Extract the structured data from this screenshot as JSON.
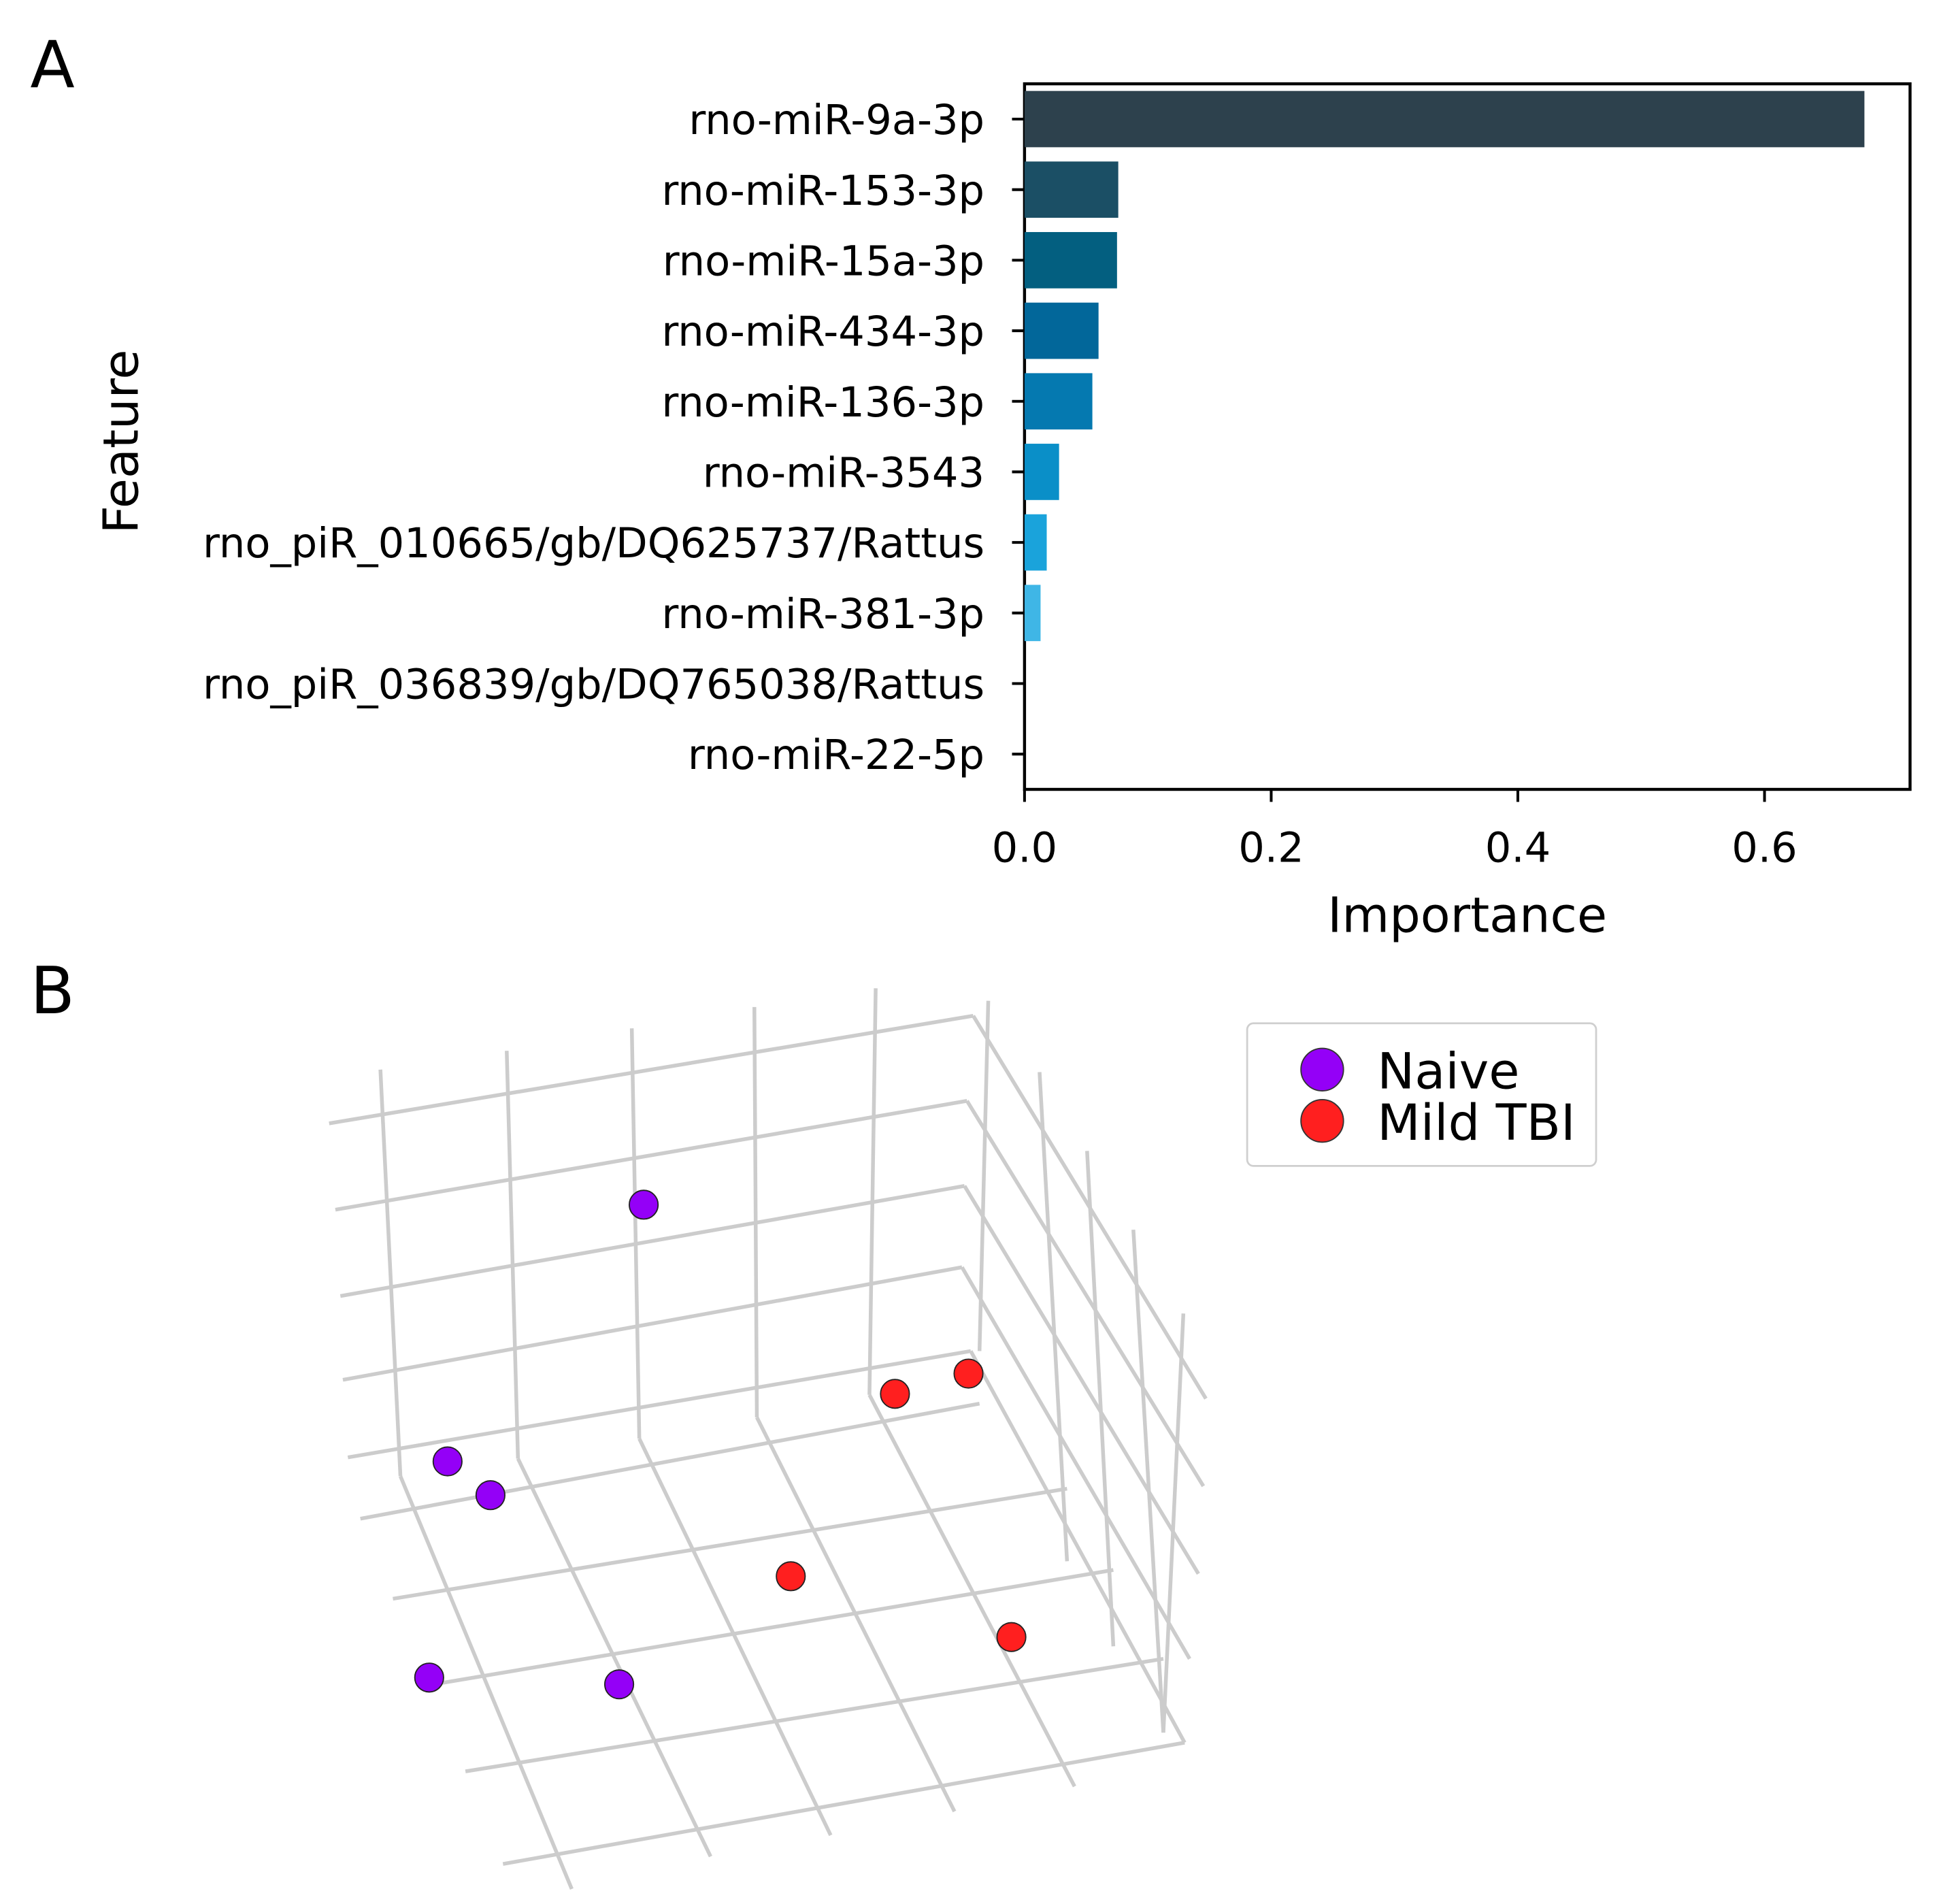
{
  "chart_data": [
    {
      "panel_label": "A",
      "type": "bar",
      "orientation": "horizontal",
      "xlabel": "Importance",
      "ylabel": "Feature",
      "xlim": [
        0,
        0.718
      ],
      "xticks": [
        "0.0",
        "0.2",
        "0.4",
        "0.6"
      ],
      "xtick_values": [
        0.0,
        0.2,
        0.4,
        0.6
      ],
      "categories": [
        "rno-miR-9a-3p",
        "rno-miR-153-3p",
        "rno-miR-15a-3p",
        "rno-miR-434-3p",
        "rno-miR-136-3p",
        "rno-miR-3543",
        "rno_piR_010665/gb/DQ625737/Rattus",
        "rno-miR-381-3p",
        "rno_piR_036839/gb/DQ765038/Rattus",
        "rno-miR-22-5p"
      ],
      "values": [
        0.681,
        0.076,
        0.075,
        0.06,
        0.055,
        0.028,
        0.018,
        0.013,
        0.0,
        0.0
      ],
      "colors": [
        "#2d414d",
        "#1b4f65",
        "#035f80",
        "#02679a",
        "#0579b0",
        "#0a8fc8",
        "#1aa3db",
        "#3fb6e6",
        "#6fcbee",
        "#9fdcf4"
      ],
      "grid": false
    },
    {
      "panel_label": "B",
      "type": "scatter",
      "projection": "3d",
      "legend": {
        "placement": "top-right",
        "entries": [
          {
            "label": "Naive",
            "color": "#9400f7"
          },
          {
            "label": "Mild TBI",
            "color": "#ff1f1f"
          }
        ]
      },
      "series": [
        {
          "name": "Naive",
          "color": "#9400f7",
          "points": [
            [
              0.45,
              0.8
            ],
            [
              0.13,
              0.42
            ],
            [
              0.2,
              0.37
            ],
            [
              0.41,
              0.09
            ],
            [
              0.1,
              0.1
            ]
          ]
        },
        {
          "name": "Mild TBI",
          "color": "#ff1f1f",
          "points": [
            [
              0.86,
              0.52
            ],
            [
              0.98,
              0.55
            ],
            [
              0.69,
              0.25
            ],
            [
              1.05,
              0.16
            ]
          ]
        }
      ],
      "grid": true
    }
  ]
}
